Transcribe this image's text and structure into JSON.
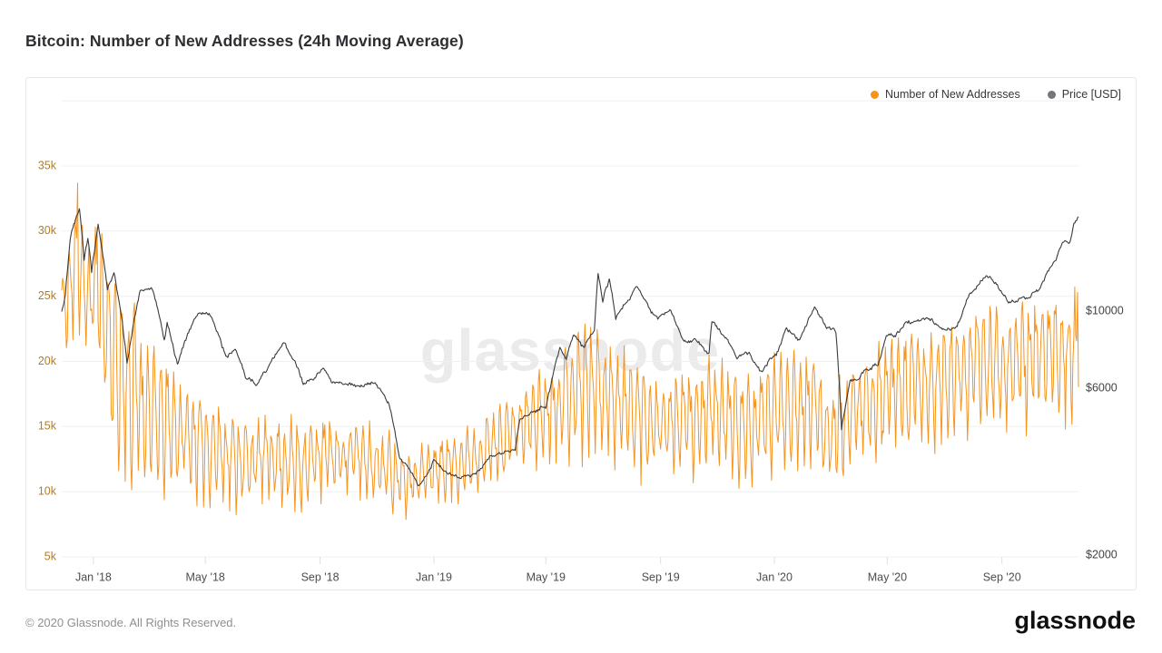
{
  "page": {
    "title": "Bitcoin: Number of New Addresses (24h Moving Average)",
    "watermark": "glassnode",
    "footer": {
      "copyright": "© 2020 Glassnode. All Rights Reserved.",
      "logo_text": "glassnode"
    }
  },
  "legend": {
    "items": [
      {
        "label": "Number of New Addresses",
        "color": "#f7941d"
      },
      {
        "label": "Price [USD]",
        "color": "#75757a"
      }
    ]
  },
  "colors": {
    "grid": "#f0f0f0",
    "axis_tick_mark": "#e0e0e0",
    "x_axis_text": "#4d4d4d",
    "right_axis_text": "#434348",
    "left_axis_text": "#b07d24",
    "addresses_line": "#f7941d",
    "price_line": "#3b3b3b",
    "card_border": "#e8e8e8"
  },
  "chart_data": {
    "type": "line",
    "title": "Bitcoin: Number of New Addresses (24h Moving Average)",
    "start_date": "2017-11-28",
    "total_days": 1090,
    "grid": "horizontal-only",
    "legend_position": "top-right",
    "x_axis": {
      "ticks": [
        {
          "day": 34,
          "label": "Jan '18"
        },
        {
          "day": 154,
          "label": "May '18"
        },
        {
          "day": 277,
          "label": "Sep '18"
        },
        {
          "day": 399,
          "label": "Jan '19"
        },
        {
          "day": 519,
          "label": "May '19"
        },
        {
          "day": 642,
          "label": "Sep '19"
        },
        {
          "day": 764,
          "label": "Jan '20"
        },
        {
          "day": 885,
          "label": "May '20"
        },
        {
          "day": 1008,
          "label": "Sep '20"
        }
      ]
    },
    "left_y_axis": {
      "series": "Number of New Addresses",
      "scale": "linear",
      "range": [
        5000,
        40000
      ],
      "grid_values": [
        5000,
        10000,
        15000,
        20000,
        25000,
        30000,
        35000,
        40000
      ],
      "ticks": [
        {
          "value": 5000,
          "label": "5k"
        },
        {
          "value": 10000,
          "label": "10k"
        },
        {
          "value": 15000,
          "label": "15k"
        },
        {
          "value": 20000,
          "label": "20k"
        },
        {
          "value": 25000,
          "label": "25k"
        },
        {
          "value": 30000,
          "label": "30k"
        },
        {
          "value": 35000,
          "label": "35k"
        }
      ]
    },
    "right_y_axis": {
      "series": "Price [USD]",
      "scale": "log",
      "ticks": [
        {
          "value": 2000,
          "label": "$2000"
        },
        {
          "value": 6000,
          "label": "$6000"
        },
        {
          "value": 10000,
          "label": "$10000"
        }
      ]
    },
    "series": [
      {
        "name": "Number of New Addresses",
        "axis": "left",
        "color": "#f7941d",
        "render": {
          "seed": 11,
          "noise": 0.8,
          "weekly_pattern": [
            0.75,
            1.0,
            0.7,
            0.2,
            -0.45,
            -1.0,
            -0.35
          ]
        },
        "anchors_day_mid_amp": [
          [
            0,
            23500,
            3000
          ],
          [
            8,
            24500,
            4200
          ],
          [
            17,
            28000,
            5600
          ],
          [
            26,
            24000,
            4600
          ],
          [
            36,
            25500,
            4600
          ],
          [
            47,
            22500,
            6200
          ],
          [
            60,
            18500,
            7000
          ],
          [
            75,
            17000,
            7200
          ],
          [
            90,
            16000,
            5200
          ],
          [
            105,
            14800,
            4600
          ],
          [
            120,
            14500,
            4800
          ],
          [
            135,
            13800,
            4200
          ],
          [
            150,
            13200,
            3600
          ],
          [
            165,
            13000,
            3600
          ],
          [
            180,
            12400,
            3400
          ],
          [
            195,
            12000,
            3400
          ],
          [
            210,
            12200,
            3000
          ],
          [
            225,
            12400,
            3200
          ],
          [
            240,
            12000,
            3200
          ],
          [
            255,
            11800,
            3300
          ],
          [
            270,
            12300,
            3000
          ],
          [
            285,
            12600,
            2800
          ],
          [
            300,
            12400,
            2600
          ],
          [
            315,
            12600,
            2600
          ],
          [
            330,
            12200,
            2800
          ],
          [
            345,
            11600,
            2800
          ],
          [
            360,
            11200,
            2600
          ],
          [
            375,
            10800,
            2400
          ],
          [
            390,
            11200,
            2300
          ],
          [
            405,
            11600,
            2300
          ],
          [
            420,
            11900,
            2400
          ],
          [
            435,
            12200,
            2400
          ],
          [
            450,
            12800,
            2500
          ],
          [
            465,
            13400,
            2600
          ],
          [
            480,
            14200,
            2800
          ],
          [
            495,
            14800,
            3000
          ],
          [
            510,
            15500,
            3200
          ],
          [
            525,
            16200,
            3600
          ],
          [
            540,
            17000,
            4200
          ],
          [
            555,
            17600,
            4600
          ],
          [
            570,
            17800,
            4800
          ],
          [
            585,
            17200,
            4600
          ],
          [
            600,
            16200,
            4300
          ],
          [
            615,
            15600,
            4100
          ],
          [
            630,
            15200,
            3800
          ],
          [
            645,
            15000,
            3600
          ],
          [
            660,
            15000,
            3800
          ],
          [
            675,
            15200,
            3900
          ],
          [
            690,
            15400,
            4000
          ],
          [
            705,
            15600,
            4100
          ],
          [
            720,
            15000,
            3900
          ],
          [
            735,
            14400,
            3700
          ],
          [
            750,
            15000,
            3800
          ],
          [
            765,
            15800,
            4000
          ],
          [
            780,
            16400,
            4100
          ],
          [
            795,
            16600,
            4100
          ],
          [
            810,
            15600,
            4000
          ],
          [
            822,
            14200,
            3800
          ],
          [
            835,
            14600,
            3900
          ],
          [
            850,
            15600,
            4000
          ],
          [
            865,
            16200,
            4000
          ],
          [
            880,
            16800,
            4100
          ],
          [
            895,
            17200,
            4100
          ],
          [
            910,
            17600,
            4200
          ],
          [
            925,
            17400,
            4200
          ],
          [
            940,
            17800,
            4200
          ],
          [
            955,
            18400,
            4300
          ],
          [
            970,
            19000,
            4300
          ],
          [
            985,
            19400,
            4300
          ],
          [
            1000,
            19600,
            4300
          ],
          [
            1015,
            19400,
            4300
          ],
          [
            1030,
            19600,
            4300
          ],
          [
            1045,
            19800,
            4400
          ],
          [
            1060,
            20000,
            4400
          ],
          [
            1075,
            20200,
            4400
          ],
          [
            1090,
            21000,
            4600
          ]
        ],
        "spikes_day_value": [
          [
            17,
            33700
          ],
          [
            38,
            30200
          ],
          [
            1089,
            25300
          ]
        ]
      },
      {
        "name": "Price [USD]",
        "axis": "right",
        "color": "#3b3b3b",
        "render": {
          "seed": 5,
          "jitter": 0.02
        },
        "anchors_day_value": [
          [
            0,
            9900
          ],
          [
            4,
            11200
          ],
          [
            10,
            16400
          ],
          [
            19,
            19300
          ],
          [
            24,
            13800
          ],
          [
            28,
            15800
          ],
          [
            32,
            12700
          ],
          [
            39,
            17100
          ],
          [
            49,
            11300
          ],
          [
            56,
            12500
          ],
          [
            65,
            9000
          ],
          [
            70,
            6900
          ],
          [
            84,
            11100
          ],
          [
            97,
            11400
          ],
          [
            110,
            8100
          ],
          [
            113,
            9000
          ],
          [
            124,
            6900
          ],
          [
            131,
            8000
          ],
          [
            147,
            9700
          ],
          [
            158,
            9830
          ],
          [
            176,
            7450
          ],
          [
            186,
            7640
          ],
          [
            197,
            6300
          ],
          [
            208,
            6050
          ],
          [
            216,
            6600
          ],
          [
            239,
            8200
          ],
          [
            259,
            6000
          ],
          [
            270,
            6400
          ],
          [
            281,
            7050
          ],
          [
            290,
            6450
          ],
          [
            321,
            6300
          ],
          [
            336,
            6450
          ],
          [
            351,
            5550
          ],
          [
            362,
            3900
          ],
          [
            372,
            3500
          ],
          [
            382,
            3200
          ],
          [
            399,
            3800
          ],
          [
            412,
            3550
          ],
          [
            437,
            3400
          ],
          [
            458,
            3850
          ],
          [
            470,
            3950
          ],
          [
            486,
            4100
          ],
          [
            491,
            5050
          ],
          [
            519,
            5350
          ],
          [
            534,
            7900
          ],
          [
            541,
            7200
          ],
          [
            549,
            8550
          ],
          [
            560,
            7900
          ],
          [
            571,
            9000
          ],
          [
            575,
            13200
          ],
          [
            580,
            11000
          ],
          [
            587,
            12700
          ],
          [
            594,
            9700
          ],
          [
            604,
            10700
          ],
          [
            616,
            11800
          ],
          [
            630,
            10100
          ],
          [
            639,
            9500
          ],
          [
            652,
            10300
          ],
          [
            665,
            8200
          ],
          [
            680,
            8050
          ],
          [
            694,
            7500
          ],
          [
            697,
            9250
          ],
          [
            710,
            8500
          ],
          [
            724,
            7150
          ],
          [
            737,
            7450
          ],
          [
            750,
            6650
          ],
          [
            760,
            7200
          ],
          [
            766,
            7350
          ],
          [
            777,
            8800
          ],
          [
            790,
            8350
          ],
          [
            808,
            10300
          ],
          [
            820,
            9100
          ],
          [
            830,
            8800
          ],
          [
            836,
            4700
          ],
          [
            845,
            6200
          ],
          [
            852,
            6300
          ],
          [
            862,
            6850
          ],
          [
            875,
            7100
          ],
          [
            884,
            8800
          ],
          [
            894,
            8650
          ],
          [
            905,
            9550
          ],
          [
            916,
            9480
          ],
          [
            930,
            9350
          ],
          [
            946,
            9120
          ],
          [
            960,
            9200
          ],
          [
            972,
            11000
          ],
          [
            993,
            12250
          ],
          [
            1004,
            11400
          ],
          [
            1015,
            10250
          ],
          [
            1027,
            10550
          ],
          [
            1038,
            10650
          ],
          [
            1048,
            11400
          ],
          [
            1058,
            12900
          ],
          [
            1066,
            13800
          ],
          [
            1073,
            15550
          ],
          [
            1080,
            15500
          ],
          [
            1085,
            17800
          ],
          [
            1090,
            18750
          ]
        ]
      }
    ]
  }
}
